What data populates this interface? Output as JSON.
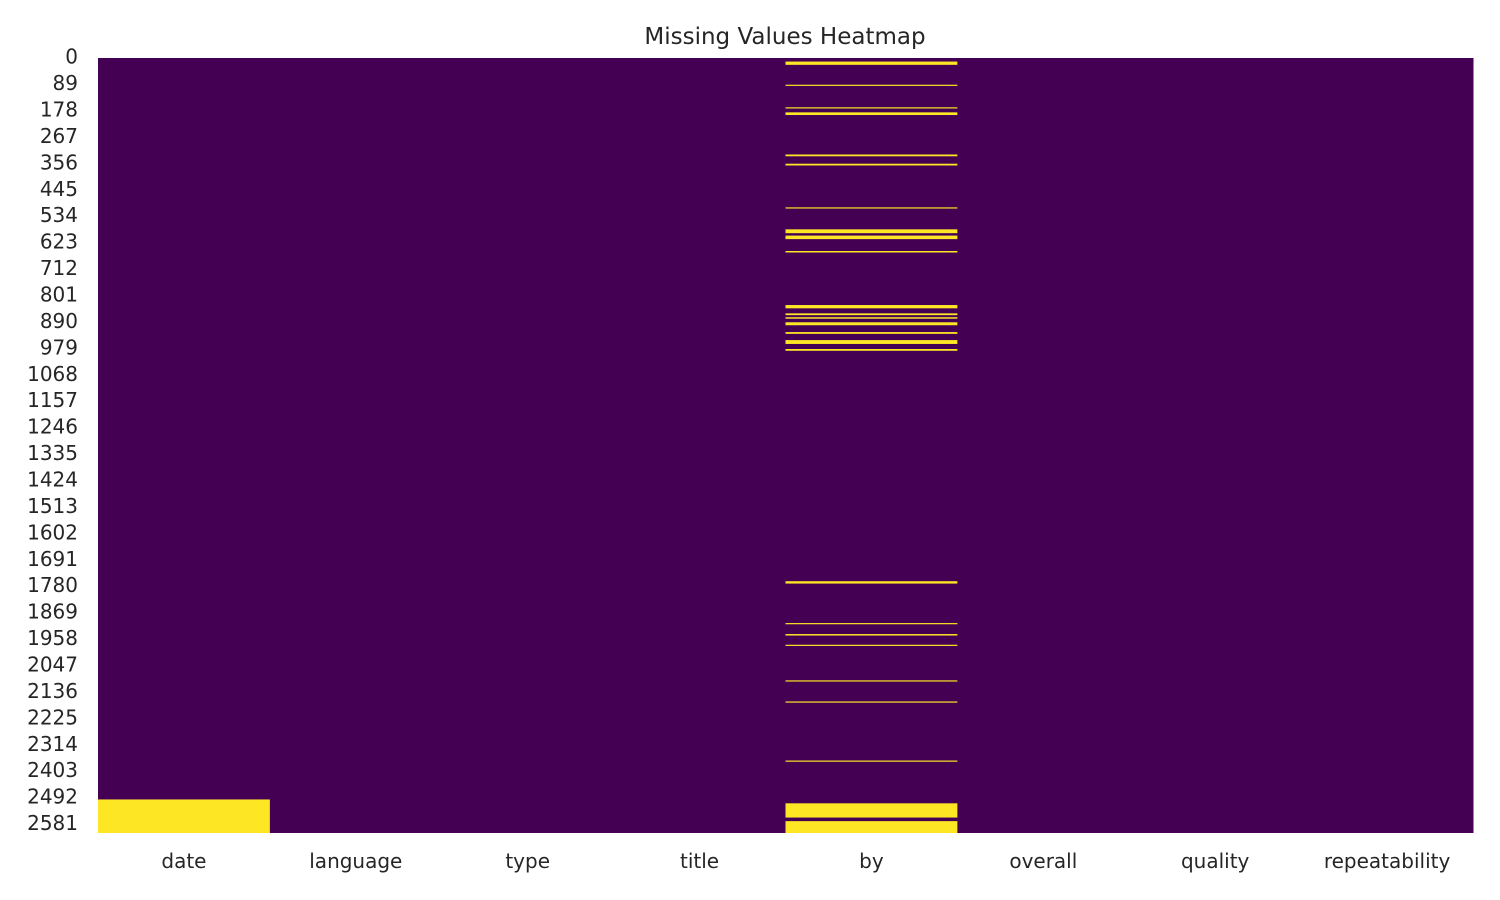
{
  "chart_data": {
    "type": "heatmap",
    "title": "Missing Values Heatmap",
    "xlabel": "",
    "ylabel": "",
    "columns": [
      "date",
      "language",
      "type",
      "title",
      "by",
      "overall",
      "quality",
      "repeatability"
    ],
    "row_count": 2610,
    "y_tick_labels": [
      "0",
      "89",
      "178",
      "267",
      "356",
      "445",
      "534",
      "623",
      "712",
      "801",
      "890",
      "979",
      "1068",
      "1157",
      "1246",
      "1335",
      "1424",
      "1513",
      "1602",
      "1691",
      "1780",
      "1869",
      "1958",
      "2047",
      "2136",
      "2225",
      "2314",
      "2403",
      "2492",
      "2581"
    ],
    "legend": "none",
    "grid": false,
    "colors": {
      "present": "#440154",
      "missing": "#fde725"
    },
    "missing_ranges": {
      "date": [
        [
          2497,
          2610
        ]
      ],
      "language": [],
      "type": [],
      "title": [],
      "by": [
        [
          12,
          23
        ],
        [
          90,
          94
        ],
        [
          166,
          170
        ],
        [
          183,
          192
        ],
        [
          325,
          331
        ],
        [
          356,
          362
        ],
        [
          503,
          507
        ],
        [
          577,
          590
        ],
        [
          598,
          610
        ],
        [
          650,
          655
        ],
        [
          832,
          843
        ],
        [
          860,
          866
        ],
        [
          873,
          878
        ],
        [
          890,
          900
        ],
        [
          923,
          929
        ],
        [
          950,
          963
        ],
        [
          980,
          986
        ],
        [
          1762,
          1770
        ],
        [
          1903,
          1907
        ],
        [
          1940,
          1945
        ],
        [
          1976,
          1980
        ],
        [
          2096,
          2100
        ],
        [
          2167,
          2171
        ],
        [
          2366,
          2370
        ],
        [
          2510,
          2558
        ],
        [
          2570,
          2610
        ]
      ],
      "overall": [],
      "quality": [],
      "repeatability": []
    }
  }
}
